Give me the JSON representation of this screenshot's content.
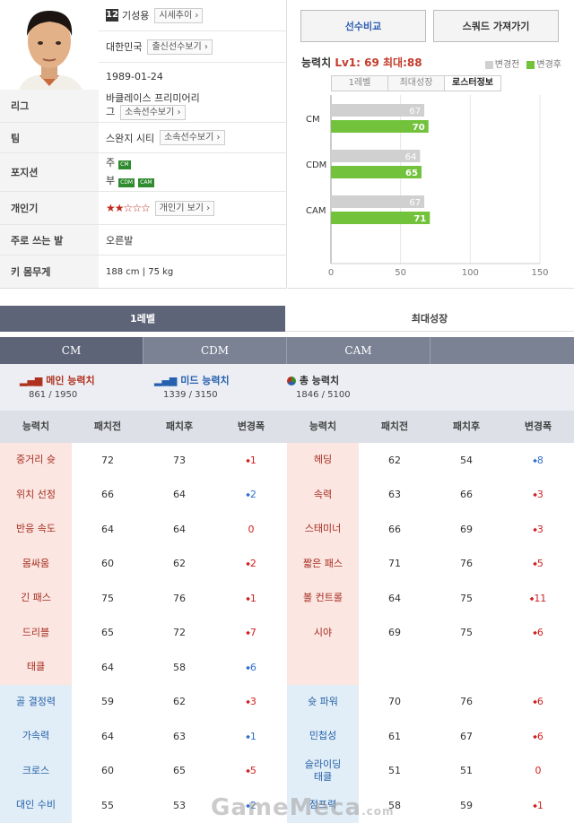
{
  "player": {
    "number": "12",
    "name": "기성용",
    "market_btn": "시세추이",
    "nation": "대한민국",
    "nation_btn": "출신선수보기",
    "birth": "1989-01-24",
    "league_label": "리그",
    "league_line1": "바클레이스 프리미어리",
    "league_line2": "그",
    "league_btn": "소속선수보기",
    "team_label": "팀",
    "team": "스완지 시티",
    "team_btn": "소속선수보기",
    "position_label": "포지션",
    "pos_main_prefix": "주",
    "pos_main": "CM",
    "pos_sub_prefix": "부",
    "pos_sub1": "CDM",
    "pos_sub2": "CAM",
    "skill_label": "개인기",
    "skill_stars": "★★☆☆☆",
    "skill_rating": 2,
    "skill_btn": "개인기 보기",
    "foot_label": "주로 쓰는 발",
    "foot": "오른발",
    "body_label": "키 몸무게",
    "body": "188 cm  |  75 kg"
  },
  "actions": {
    "compare": "선수비교",
    "squad": "스쿼드 가져가기"
  },
  "ability": {
    "label": "능력치",
    "level": "Lv1: 69",
    "max": "최대:88",
    "legend_before": "변경전",
    "legend_after": "변경후",
    "color_before": "#d0d0d0",
    "color_after": "#72c23c",
    "tabs": [
      "1레벨",
      "최대성장",
      "로스터정보"
    ]
  },
  "chart_data": {
    "type": "bar",
    "categories": [
      "CM",
      "CDM",
      "CAM"
    ],
    "series": [
      {
        "name": "변경전",
        "values": [
          67,
          64,
          67
        ]
      },
      {
        "name": "변경후",
        "values": [
          70,
          65,
          71
        ]
      }
    ],
    "xlim": [
      0,
      150
    ],
    "xticks": [
      "0",
      "50",
      "100",
      "150"
    ],
    "orientation": "horizontal"
  },
  "main_tabs": [
    "1레벨",
    "최대성장"
  ],
  "pos_tabs": [
    "CM",
    "CDM",
    "CAM",
    ""
  ],
  "summary": {
    "main_title": "메인 능력치",
    "main_value": "861 / 1950",
    "mid_title": "미드 능력치",
    "mid_value": "1339 / 3150",
    "total_title": "총 능력치",
    "total_value": "1846 / 5100"
  },
  "table": {
    "headers": [
      "능력치",
      "패치전",
      "패치후",
      "변경폭",
      "능력치",
      "패치전",
      "패치후",
      "변경폭"
    ],
    "rows": [
      [
        {
          "name": "중거리 슛",
          "before": "72",
          "after": "73",
          "delta": "1",
          "dir": "up",
          "hl": "pink"
        },
        {
          "name": "헤딩",
          "before": "62",
          "after": "54",
          "delta": "8",
          "dir": "dn",
          "hl": "pink"
        }
      ],
      [
        {
          "name": "위치 선정",
          "before": "66",
          "after": "64",
          "delta": "2",
          "dir": "dn",
          "hl": "pink"
        },
        {
          "name": "속력",
          "before": "63",
          "after": "66",
          "delta": "3",
          "dir": "up",
          "hl": "pink"
        }
      ],
      [
        {
          "name": "반응 속도",
          "before": "64",
          "after": "64",
          "delta": "0",
          "dir": "zero",
          "hl": "pink"
        },
        {
          "name": "스태미너",
          "before": "66",
          "after": "69",
          "delta": "3",
          "dir": "up",
          "hl": "pink"
        }
      ],
      [
        {
          "name": "몸싸움",
          "before": "60",
          "after": "62",
          "delta": "2",
          "dir": "up",
          "hl": "pink"
        },
        {
          "name": "짧은 패스",
          "before": "71",
          "after": "76",
          "delta": "5",
          "dir": "up",
          "hl": "pink"
        }
      ],
      [
        {
          "name": "긴 패스",
          "before": "75",
          "after": "76",
          "delta": "1",
          "dir": "up",
          "hl": "pink"
        },
        {
          "name": "볼 컨트롤",
          "before": "64",
          "after": "75",
          "delta": "11",
          "dir": "up",
          "hl": "pink"
        }
      ],
      [
        {
          "name": "드리블",
          "before": "65",
          "after": "72",
          "delta": "7",
          "dir": "up",
          "hl": "pink"
        },
        {
          "name": "시야",
          "before": "69",
          "after": "75",
          "delta": "6",
          "dir": "up",
          "hl": "pink"
        }
      ],
      [
        {
          "name": "태클",
          "before": "64",
          "after": "58",
          "delta": "6",
          "dir": "dn",
          "hl": "pink"
        },
        {
          "name": "",
          "before": "",
          "after": "",
          "delta": "",
          "dir": "none",
          "hl": "pink"
        }
      ],
      [
        {
          "name": "골 결정력",
          "before": "59",
          "after": "62",
          "delta": "3",
          "dir": "up",
          "hl": "blue"
        },
        {
          "name": "슛 파워",
          "before": "70",
          "after": "76",
          "delta": "6",
          "dir": "up",
          "hl": "blue"
        }
      ],
      [
        {
          "name": "가속력",
          "before": "64",
          "after": "63",
          "delta": "1",
          "dir": "dn",
          "hl": "blue"
        },
        {
          "name": "민첩성",
          "before": "61",
          "after": "67",
          "delta": "6",
          "dir": "up",
          "hl": "blue"
        }
      ],
      [
        {
          "name": "크로스",
          "before": "60",
          "after": "65",
          "delta": "5",
          "dir": "up",
          "hl": "blue"
        },
        {
          "name": "슬라이딩\n태클",
          "before": "51",
          "after": "51",
          "delta": "0",
          "dir": "zero",
          "hl": "blue"
        }
      ],
      [
        {
          "name": "대인 수비",
          "before": "55",
          "after": "53",
          "delta": "2",
          "dir": "dn",
          "hl": "blue"
        },
        {
          "name": "점프력",
          "before": "58",
          "after": "59",
          "delta": "1",
          "dir": "up",
          "hl": "blue"
        }
      ]
    ]
  },
  "colors": {
    "pink_cell": "#fbe6e2",
    "blue_cell": "#e2eef7"
  },
  "watermark": "GameMeca",
  "watermark_suffix": ".com"
}
